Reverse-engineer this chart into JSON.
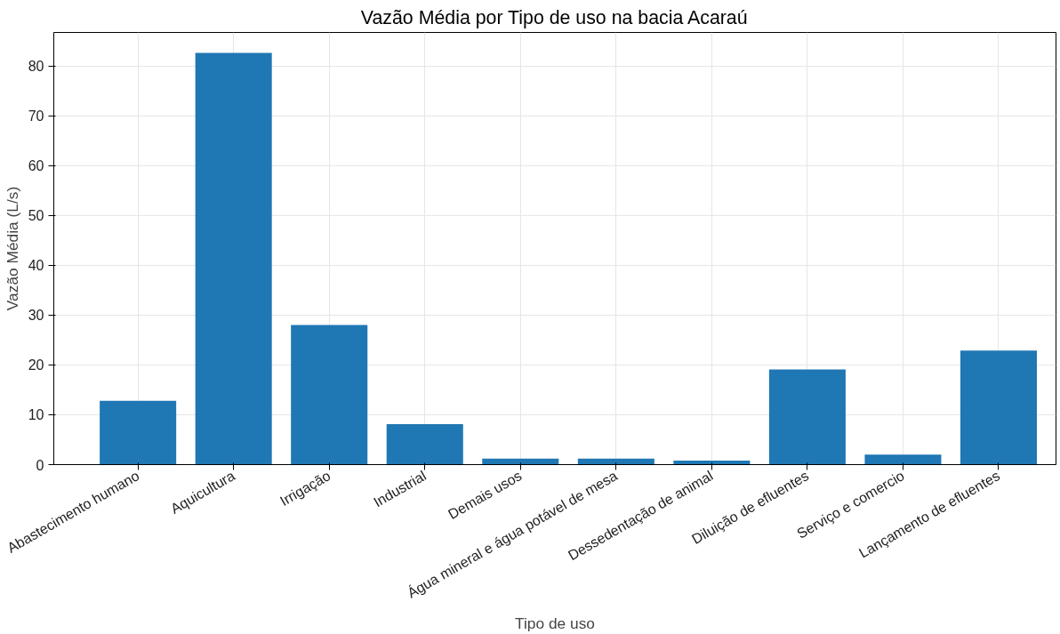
{
  "chart_data": {
    "type": "bar",
    "title": "Vazão Média por Tipo de uso na bacia Acaraú",
    "xlabel": "Tipo de uso",
    "ylabel": "Vazão Média (L/s)",
    "categories": [
      "Abastecimento humano",
      "Aquicultura",
      "Irrigação",
      "Industrial",
      "Demais usos",
      "Água mineral e água potável de mesa",
      "Dessedentação de animal",
      "Diluição de efluentes",
      "Serviço e comercio",
      "Lançamento de efluentes"
    ],
    "values": [
      12.8,
      82.6,
      28.0,
      8.1,
      1.2,
      1.2,
      0.8,
      19.1,
      2.0,
      22.9
    ],
    "color": "#1f77b4",
    "ylim": [
      0,
      86.7
    ],
    "yticks": [
      0,
      10,
      20,
      30,
      40,
      50,
      60,
      70,
      80
    ],
    "grid": true
  }
}
